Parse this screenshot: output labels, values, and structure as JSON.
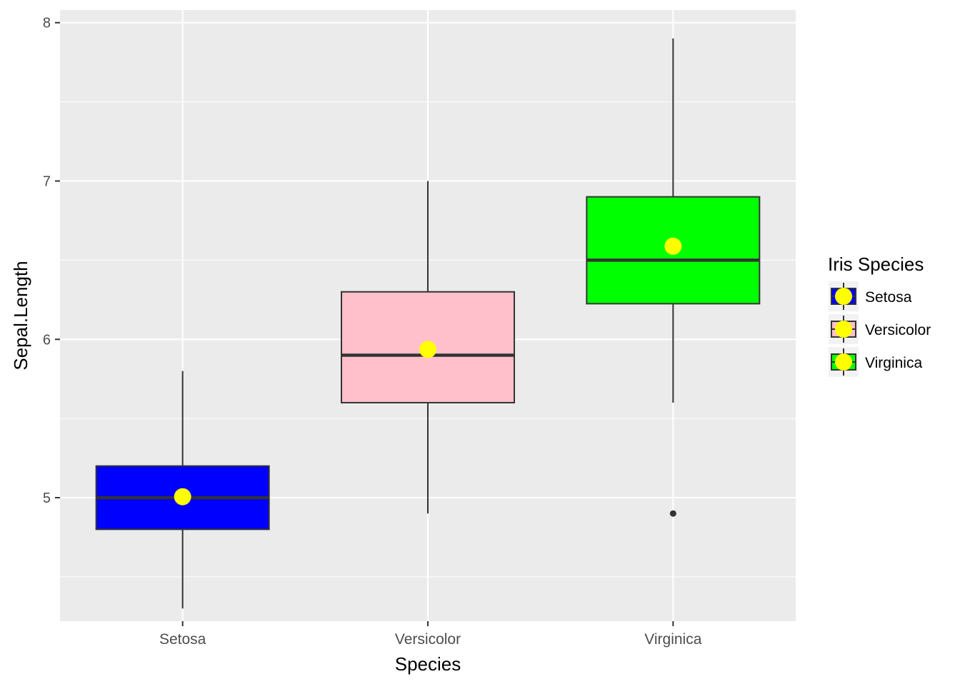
{
  "chart_data": {
    "type": "boxplot",
    "xlabel": "Species",
    "ylabel": "Sepal.Length",
    "categories": [
      "Setosa",
      "Versicolor",
      "Virginica"
    ],
    "ylim": [
      4.22,
      8.08
    ],
    "yticks": [
      5,
      6,
      7,
      8
    ],
    "y_minor_ticks": [
      4.5,
      5.5,
      6.5,
      7.5
    ],
    "grid": true,
    "legend": {
      "title": "Iris Species",
      "position": "right",
      "entries": [
        "Setosa",
        "Versicolor",
        "Virginica"
      ]
    },
    "series": [
      {
        "category": "Setosa",
        "fill": "#0000ff",
        "min": 4.3,
        "q1": 4.8,
        "median": 5.0,
        "q3": 5.2,
        "max": 5.8,
        "mean": 5.006,
        "outliers": []
      },
      {
        "category": "Versicolor",
        "fill": "#ffc0cb",
        "min": 4.9,
        "q1": 5.6,
        "median": 5.9,
        "q3": 6.3,
        "max": 7.0,
        "mean": 5.936,
        "outliers": []
      },
      {
        "category": "Virginica",
        "fill": "#00ff00",
        "min": 5.6,
        "q1": 6.225,
        "median": 6.5,
        "q3": 6.9,
        "max": 7.9,
        "mean": 6.588,
        "outliers": [
          4.9
        ]
      }
    ],
    "mean_marker_color": "#ffff00",
    "panel_background": "#ebebeb",
    "grid_color": "#ffffff"
  }
}
